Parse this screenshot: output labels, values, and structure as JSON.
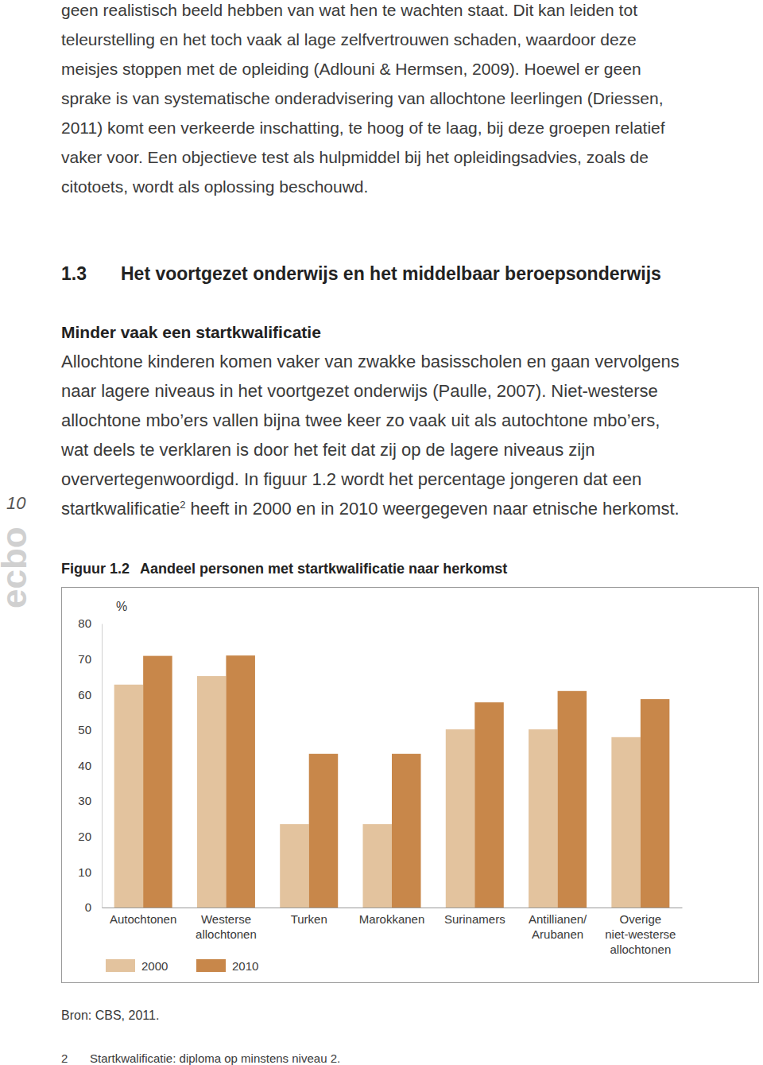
{
  "page": {
    "running_text": [
      "geen realistisch beeld hebben van wat hen te wachten staat. Dit kan leiden tot",
      "teleurstelling en het toch vaak al lage zelfvertrouwen schaden, waardoor deze",
      "meisjes stoppen met de opleiding (Adlouni & Hermsen, 2009). Hoewel er geen",
      "sprake is van systematische onderadvisering van allochtone leerlingen (Driessen,",
      "2011) komt een verkeerde inschatting, te hoog of te laag, bij deze groepen relatief",
      "vaker voor. Een objectieve test als hulpmiddel bij het opleidingsadvies, zoals de",
      "citotoets, wordt als oplossing beschouwd."
    ],
    "section": {
      "number": "1.3",
      "title": "Het voortgezet onderwijs en het middelbaar beroepsonderwijs"
    },
    "subheading": "Minder vaak een startkwalificatie",
    "paragraph": [
      "Allochtone kinderen komen vaker van zwakke basisscholen en gaan vervolgens",
      "naar lagere niveaus in het voortgezet onderwijs (Paulle, 2007). Niet-westerse",
      "allochtone mbo’ers vallen bijna twee keer zo vaak uit als autochtone mbo’ers,",
      "wat deels te verklaren is door het feit dat zij op de lagere niveaus zijn",
      "oververtegenwoordigd. In figuur 1.2 wordt het percentage jongeren dat een"
    ],
    "last_line": {
      "before": "startkwalificatie",
      "note": "2",
      "after": " heeft in 2000 en in 2010 weergegeven naar etnische herkomst."
    },
    "page_number": "10",
    "publisher": "ecbo",
    "figure_label": "Figuur 1.2",
    "source": "Bron: CBS, 2011.",
    "footnote": {
      "number": "2",
      "text": "Startkwalificatie: diploma op minstens niveau 2."
    }
  },
  "chart_data": {
    "type": "bar",
    "title": "Aandeel personen met startkwalificatie naar herkomst",
    "y_label": "%",
    "categories": [
      "Autochtonen",
      "Westerse\nallochtonen",
      "Turken",
      "Marokkanen",
      "Surinamers",
      "Antillianen/\nArubanen",
      "Overige\nniet-westerse\nallochtonen"
    ],
    "series": [
      {
        "name": "2000",
        "color": "#e3c39e",
        "values": [
          62.8,
          65.2,
          23.5,
          23.5,
          50.2,
          50.2,
          48
        ]
      },
      {
        "name": "2010",
        "color": "#c8874a",
        "values": [
          70.9,
          71,
          43.3,
          43.3,
          57.8,
          61,
          58.7
        ]
      }
    ],
    "ylim": [
      0,
      80
    ],
    "yticks": [
      0,
      10,
      20,
      30,
      40,
      50,
      60,
      70,
      80
    ],
    "grid": false,
    "legend": "bottom-left"
  }
}
